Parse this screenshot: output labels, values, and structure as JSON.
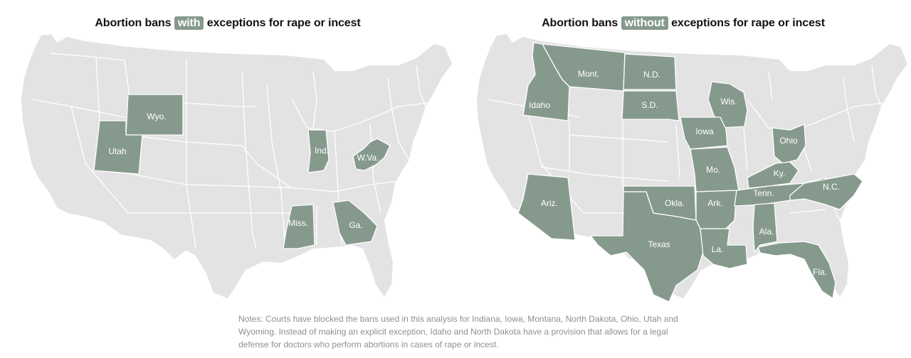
{
  "maps": [
    {
      "title_before": "Abortion bans",
      "title_highlight": "with",
      "title_after": "exceptions for rape or incest",
      "states": [
        {
          "label": "Wyo."
        },
        {
          "label": "Utah"
        },
        {
          "label": "Ind."
        },
        {
          "label": "W.Va."
        },
        {
          "label": "Miss."
        },
        {
          "label": "Ga."
        }
      ]
    },
    {
      "title_before": "Abortion bans",
      "title_highlight": "without",
      "title_after": "exceptions for rape or incest",
      "states": [
        {
          "label": "Mont."
        },
        {
          "label": "N.D."
        },
        {
          "label": "Idaho"
        },
        {
          "label": "S.D."
        },
        {
          "label": "Wis."
        },
        {
          "label": "Iowa"
        },
        {
          "label": "Ohio"
        },
        {
          "label": "Mo."
        },
        {
          "label": "Ky."
        },
        {
          "label": "Ariz."
        },
        {
          "label": "Okla."
        },
        {
          "label": "Ark."
        },
        {
          "label": "Tenn."
        },
        {
          "label": "N.C."
        },
        {
          "label": "Texas"
        },
        {
          "label": "Ala."
        },
        {
          "label": "La."
        },
        {
          "label": "Fla."
        }
      ]
    }
  ],
  "colors": {
    "ban": "#86998d",
    "land": "#e3e3e3",
    "notes": "#8f8f8f"
  },
  "notes": "Notes: Courts have blocked the bans used in this analysis for Indiana, Iowa, Montana, North Dakota, Ohio, Utah and Wyoming. Instead of making an explicit exception, Idaho and North Dakota have a provision that allows for a legal defense for doctors who perform abortions in cases of rape or incest."
}
